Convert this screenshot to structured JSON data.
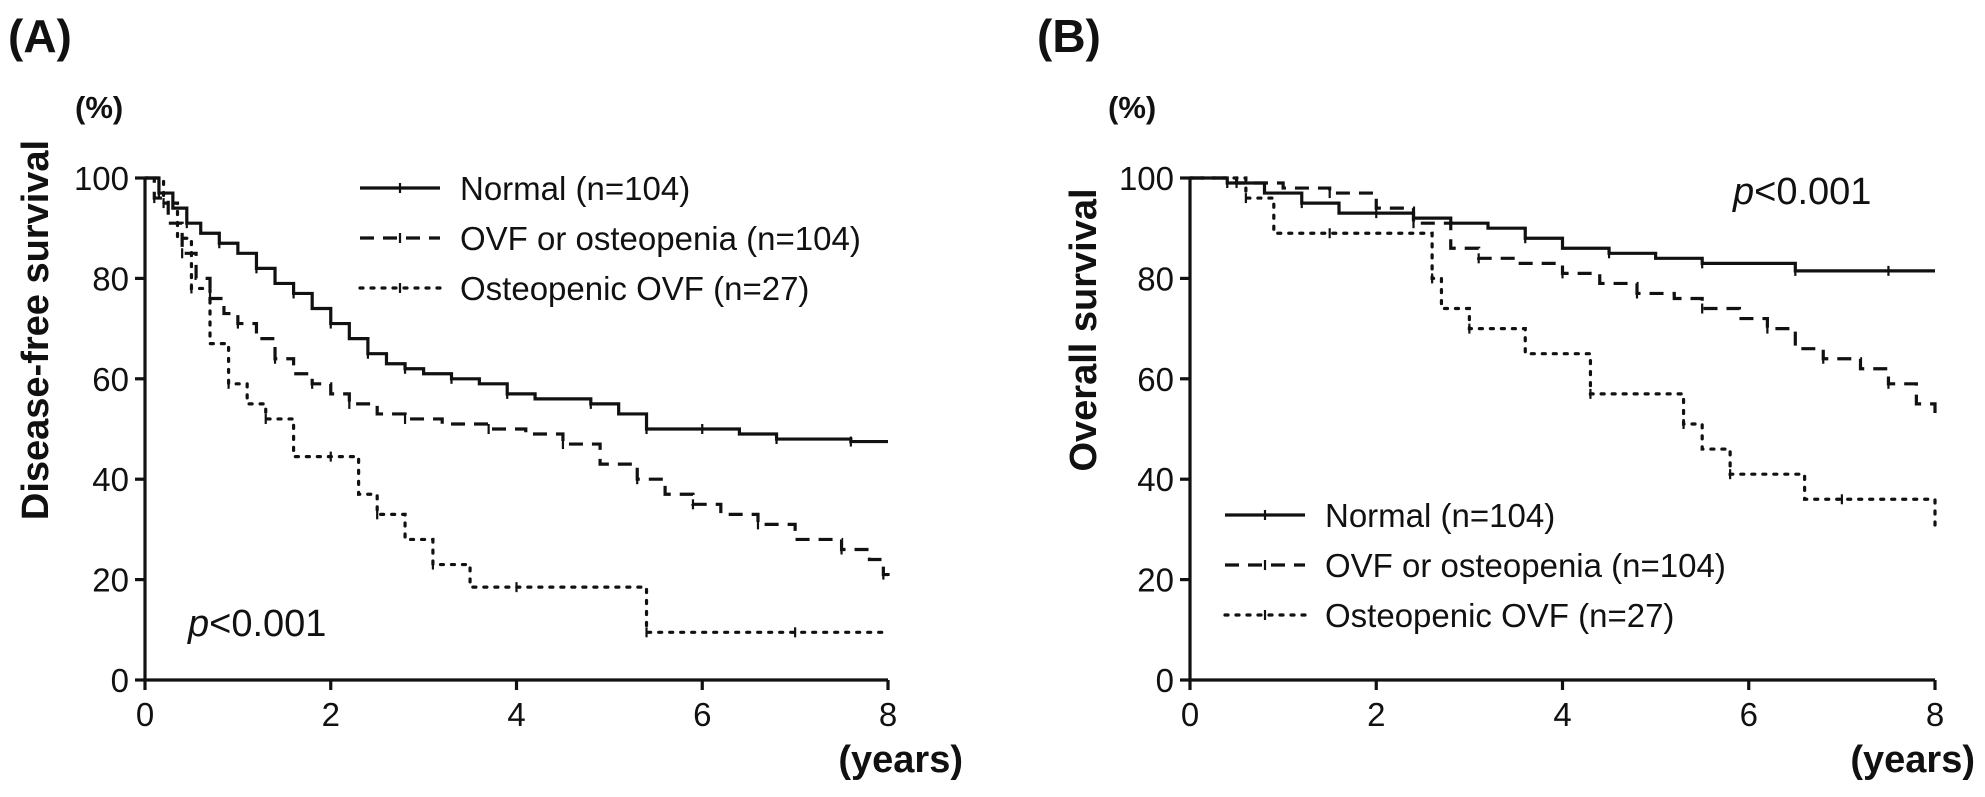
{
  "chart_data": [
    {
      "type": "line",
      "panel_label": "(A)",
      "unit": "(%)",
      "ylabel": "Disease-free survival",
      "xlabel": "(years)",
      "xlim": [
        0,
        8
      ],
      "ylim": [
        0,
        100
      ],
      "xticks": [
        "0",
        "2",
        "4",
        "6",
        "8"
      ],
      "yticks": [
        "0",
        "20",
        "40",
        "60",
        "80",
        "100"
      ],
      "legend_position": "top-right",
      "annotation": {
        "prefix": "p",
        "text": "<0.001"
      },
      "series": [
        {
          "name": "Normal (n=104)",
          "style": "solid",
          "x": [
            0,
            0.15,
            0.3,
            0.45,
            0.6,
            0.8,
            1.0,
            1.2,
            1.4,
            1.6,
            1.8,
            2.0,
            2.2,
            2.4,
            2.6,
            2.8,
            3.0,
            3.3,
            3.6,
            3.9,
            4.2,
            4.8,
            5.1,
            5.4,
            5.7,
            6.0,
            6.4,
            6.8,
            7.2,
            7.6,
            8.0
          ],
          "y": [
            100,
            97,
            94,
            91,
            89,
            87,
            85,
            82,
            79,
            77,
            74,
            71,
            68,
            65,
            63,
            62,
            61,
            60,
            59,
            57,
            56,
            55,
            53,
            50,
            50,
            50,
            49,
            48,
            48,
            47.5,
            47.5
          ]
        },
        {
          "name": "OVF or osteopenia (n=104)",
          "style": "dashed",
          "x": [
            0,
            0.1,
            0.25,
            0.4,
            0.55,
            0.7,
            0.85,
            1.0,
            1.2,
            1.4,
            1.6,
            1.8,
            2.0,
            2.2,
            2.5,
            2.8,
            3.2,
            3.7,
            4.1,
            4.5,
            4.9,
            5.3,
            5.6,
            5.9,
            6.2,
            6.6,
            7.0,
            7.5,
            7.8,
            7.95,
            8.0
          ],
          "y": [
            100,
            96,
            91,
            85,
            80,
            76,
            73,
            71,
            68,
            64,
            61,
            59,
            57,
            55,
            53,
            52,
            51,
            50,
            49,
            47,
            43,
            40,
            37,
            35,
            33,
            31,
            28,
            26,
            24,
            21,
            20
          ]
        },
        {
          "name": "Osteopenic OVF (n=27)",
          "style": "dotted",
          "x": [
            0,
            0.2,
            0.35,
            0.5,
            0.7,
            0.9,
            1.1,
            1.3,
            1.6,
            2.0,
            2.3,
            2.5,
            2.8,
            3.1,
            3.5,
            4.0,
            5.3,
            5.4,
            6.0,
            7.0,
            8.0
          ],
          "y": [
            100,
            95,
            88,
            78,
            67,
            59,
            55,
            52,
            44.5,
            44.5,
            37,
            33,
            28,
            23,
            18.5,
            18.5,
            18.5,
            9.5,
            9.5,
            9.5,
            9.5
          ]
        }
      ],
      "legend": [
        {
          "label": "Normal (n=104)",
          "style": "solid"
        },
        {
          "label": "OVF or osteopenia (n=104)",
          "style": "dashed"
        },
        {
          "label": "Osteopenic OVF (n=27)",
          "style": "dotted"
        }
      ]
    },
    {
      "type": "line",
      "panel_label": "(B)",
      "unit": "(%)",
      "ylabel": "Overall survival",
      "xlabel": "(years)",
      "xlim": [
        0,
        8
      ],
      "ylim": [
        0,
        100
      ],
      "xticks": [
        "0",
        "2",
        "4",
        "6",
        "8"
      ],
      "yticks": [
        "0",
        "20",
        "40",
        "60",
        "80",
        "100"
      ],
      "legend_position": "bottom-left",
      "annotation": {
        "prefix": "p",
        "text": "<0.001"
      },
      "series": [
        {
          "name": "Normal (n=104)",
          "style": "solid",
          "x": [
            0,
            0.4,
            0.8,
            1.2,
            1.6,
            2.0,
            2.4,
            2.8,
            3.2,
            3.6,
            4.0,
            4.5,
            5.0,
            5.5,
            6.0,
            6.5,
            7.0,
            7.5,
            8.0
          ],
          "y": [
            100,
            99,
            97,
            95,
            93,
            93,
            92,
            91,
            90,
            88,
            86,
            85,
            84,
            83,
            83,
            81.5,
            81.5,
            81.5,
            81.5
          ]
        },
        {
          "name": "OVF or osteopenia (n=104)",
          "style": "dashed",
          "x": [
            0,
            0.5,
            1.0,
            1.5,
            2.0,
            2.4,
            2.8,
            3.1,
            3.5,
            4.0,
            4.4,
            4.8,
            5.2,
            5.5,
            5.9,
            6.2,
            6.5,
            6.8,
            7.2,
            7.5,
            7.8,
            8.0
          ],
          "y": [
            100,
            99,
            98,
            97,
            94,
            91,
            86,
            84,
            83,
            81,
            79,
            77,
            76,
            74,
            72,
            70,
            66,
            64,
            62,
            59,
            55,
            53
          ]
        },
        {
          "name": "Osteopenic OVF (n=27)",
          "style": "dotted",
          "x": [
            0,
            0.6,
            0.9,
            1.5,
            2.3,
            2.6,
            2.7,
            3.0,
            3.6,
            4.3,
            5.1,
            5.3,
            5.5,
            5.8,
            6.6,
            7.0,
            8.0,
            8.0
          ],
          "y": [
            100,
            96,
            89,
            89,
            89,
            80,
            74,
            70,
            65,
            57,
            57,
            51,
            46,
            41,
            36,
            36,
            36,
            30
          ]
        }
      ],
      "legend": [
        {
          "label": "Normal (n=104)",
          "style": "solid"
        },
        {
          "label": "OVF or osteopenia (n=104)",
          "style": "dashed"
        },
        {
          "label": "Osteopenic OVF (n=27)",
          "style": "dotted"
        }
      ]
    }
  ]
}
